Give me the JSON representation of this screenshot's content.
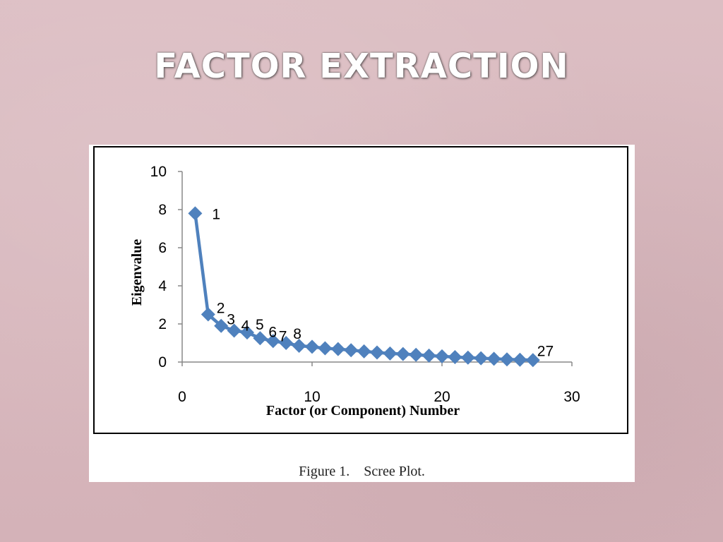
{
  "slide": {
    "title": "FACTOR EXTRACTION"
  },
  "figure": {
    "caption": "Figure 1.    Scree Plot."
  },
  "chart_data": {
    "type": "line",
    "xlabel": "Factor (or Component) Number",
    "ylabel": "Eigenvalue",
    "xlim": [
      0,
      30
    ],
    "ylim": [
      0,
      10
    ],
    "xticks": [
      "0",
      "10",
      "20",
      "30"
    ],
    "yticks": [
      "0",
      "2",
      "4",
      "6",
      "8",
      "10"
    ],
    "grid": false,
    "series": [
      {
        "color": "#4f81bd",
        "marker": "diamond",
        "x": [
          1,
          2,
          3,
          4,
          5,
          6,
          7,
          8,
          9,
          10,
          11,
          12,
          13,
          14,
          15,
          16,
          17,
          18,
          19,
          20,
          21,
          22,
          23,
          24,
          25,
          26,
          27
        ],
        "values": [
          7.8,
          2.5,
          1.9,
          1.65,
          1.55,
          1.25,
          1.1,
          1.0,
          0.85,
          0.8,
          0.72,
          0.68,
          0.62,
          0.56,
          0.5,
          0.45,
          0.42,
          0.38,
          0.34,
          0.3,
          0.26,
          0.23,
          0.2,
          0.17,
          0.14,
          0.12,
          0.1
        ]
      }
    ],
    "data_labels": [
      {
        "text": "1",
        "index": 0
      },
      {
        "text": "2",
        "index": 1
      },
      {
        "text": "3",
        "index": 2
      },
      {
        "text": "4",
        "index": 3
      },
      {
        "text": "5",
        "index": 4
      },
      {
        "text": "6",
        "index": 5
      },
      {
        "text": "7",
        "index": 6
      },
      {
        "text": "8",
        "index": 7
      },
      {
        "text": "27",
        "index": 26
      }
    ]
  }
}
